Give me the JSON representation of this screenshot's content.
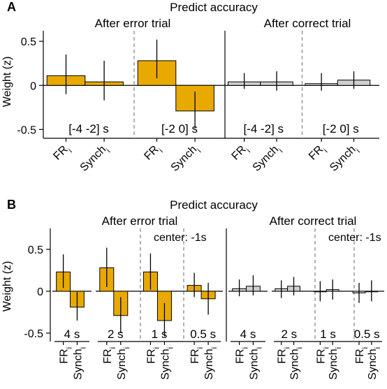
{
  "chart_data": [
    {
      "panel": "A",
      "type": "bar",
      "title": "Predict accuracy",
      "ylabel": "Weight (z)",
      "ylim": [
        -0.6,
        0.62
      ],
      "yticks": [
        0.5,
        0,
        -0.5
      ],
      "ytick_labels": [
        "0.5",
        "0",
        "-0.5"
      ],
      "x_categories": [
        "FR",
        "Synch"
      ],
      "x_subscript": "i",
      "colors": {
        "after_error": "#e8a900",
        "after_correct": "#cfcfcf"
      },
      "subplots": [
        {
          "name": "After error trial",
          "windows": [
            {
              "label": "[-4 -2] s",
              "values": [
                0.11,
                0.04
              ],
              "err_low": [
                -0.1,
                -0.17
              ],
              "err_high": [
                0.35,
                0.28
              ]
            },
            {
              "label": "[-2 0] s",
              "values": [
                0.28,
                -0.29
              ],
              "err_low": [
                0.08,
                -0.49
              ],
              "err_high": [
                0.52,
                -0.07
              ]
            }
          ]
        },
        {
          "name": "After correct trial",
          "windows": [
            {
              "label": "[-4 -2] s",
              "values": [
                0.04,
                0.04
              ],
              "err_low": [
                -0.04,
                -0.06
              ],
              "err_high": [
                0.14,
                0.16
              ]
            },
            {
              "label": "[-2 0] s",
              "values": [
                0.02,
                0.06
              ],
              "err_low": [
                -0.06,
                -0.04
              ],
              "err_high": [
                0.14,
                0.16
              ]
            }
          ]
        }
      ]
    },
    {
      "panel": "B",
      "type": "bar",
      "title": "Predict accuracy",
      "ylabel": "Weight (z)",
      "ylim": [
        -0.6,
        0.75
      ],
      "yticks": [
        0.5,
        0,
        -0.5
      ],
      "ytick_labels": [
        "0.5",
        "0",
        "-0.5"
      ],
      "x_categories": [
        "FR",
        "Synch"
      ],
      "x_subscript": "i",
      "colors": {
        "after_error": "#e8a900",
        "after_correct": "#cfcfcf"
      },
      "subplots": [
        {
          "name": "After error trial",
          "groups": [
            {
              "windows": [
                {
                  "label": "4 s",
                  "values": [
                    0.23,
                    -0.19
                  ],
                  "err_low": [
                    0.04,
                    -0.35
                  ],
                  "err_high": [
                    0.44,
                    -0.01
                  ]
                }
              ]
            },
            {
              "annotation": "center: -1s",
              "windows": [
                {
                  "label": "2 s",
                  "values": [
                    0.28,
                    -0.29
                  ],
                  "err_low": [
                    0.05,
                    -0.5
                  ],
                  "err_high": [
                    0.52,
                    -0.07
                  ]
                },
                {
                  "label": "1 s",
                  "values": [
                    0.23,
                    -0.35
                  ],
                  "err_low": [
                    0.02,
                    -0.54
                  ],
                  "err_high": [
                    0.45,
                    -0.14
                  ]
                },
                {
                  "label": "0.5 s",
                  "values": [
                    0.07,
                    -0.09
                  ],
                  "err_low": [
                    -0.07,
                    -0.28
                  ],
                  "err_high": [
                    0.22,
                    0.1
                  ]
                }
              ]
            }
          ]
        },
        {
          "name": "After correct trial",
          "groups": [
            {
              "windows": [
                {
                  "label": "4 s",
                  "values": [
                    0.03,
                    0.06
                  ],
                  "err_low": [
                    -0.06,
                    -0.05
                  ],
                  "err_high": [
                    0.14,
                    0.19
                  ]
                }
              ]
            },
            {
              "annotation": "center: -1s",
              "windows": [
                {
                  "label": "2 s",
                  "values": [
                    0.03,
                    0.06
                  ],
                  "err_low": [
                    -0.08,
                    -0.05
                  ],
                  "err_high": [
                    0.13,
                    0.17
                  ]
                },
                {
                  "label": "1 s",
                  "values": [
                    0.0,
                    0.02
                  ],
                  "err_low": [
                    -0.12,
                    -0.1
                  ],
                  "err_high": [
                    0.12,
                    0.14
                  ]
                },
                {
                  "label": "0.5 s",
                  "values": [
                    -0.02,
                    0.0
                  ],
                  "err_low": [
                    -0.14,
                    -0.12
                  ],
                  "err_high": [
                    0.1,
                    0.13
                  ]
                }
              ]
            }
          ]
        }
      ]
    }
  ]
}
